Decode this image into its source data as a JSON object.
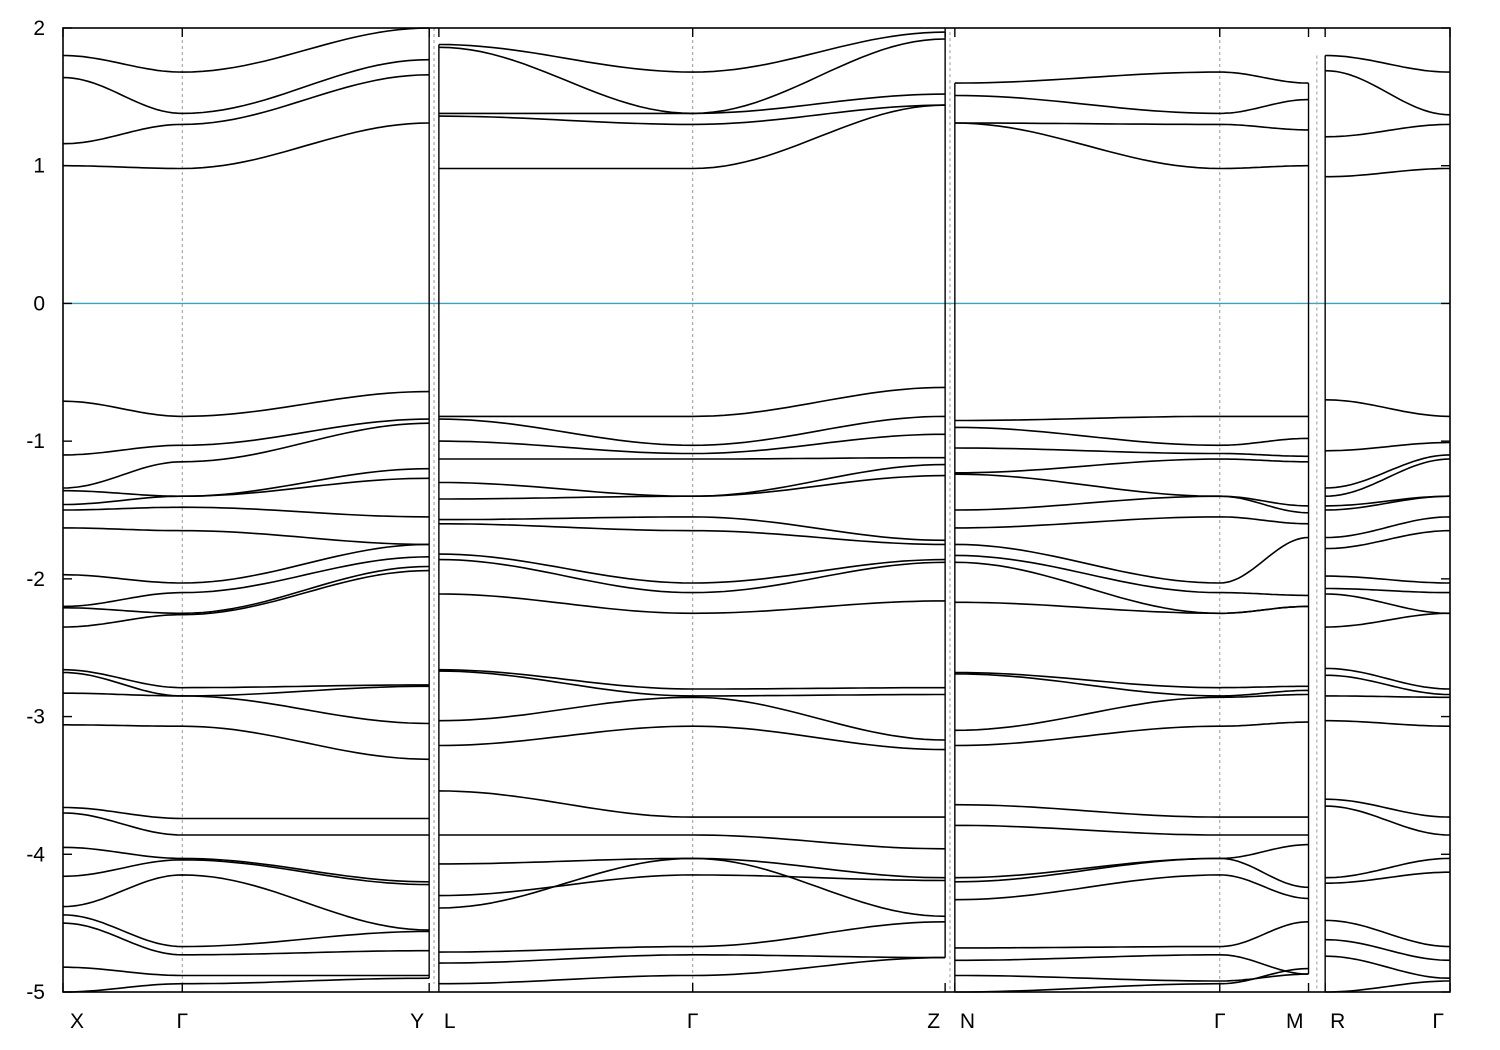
{
  "chart_data": {
    "type": "line",
    "title": "",
    "xlabel": "",
    "ylabel": "",
    "ylim": [
      -5,
      2
    ],
    "xlim": [
      0,
      1
    ],
    "yticks": [
      {
        "value": 2,
        "label": "2"
      },
      {
        "value": 1,
        "label": "1"
      },
      {
        "value": 0,
        "label": "0"
      },
      {
        "value": -1,
        "label": "-1"
      },
      {
        "value": -2,
        "label": "-2"
      },
      {
        "value": -3,
        "label": "-3"
      },
      {
        "value": -4,
        "label": "-4"
      },
      {
        "value": -5,
        "label": "-5"
      }
    ],
    "fermi_level": {
      "value": 0,
      "color": "#3ea0c0"
    },
    "band_color": "#000000",
    "high_symmetry_points": [
      {
        "pos": 0.0,
        "label": "X",
        "line": false,
        "break": false
      },
      {
        "pos": 0.086,
        "label": "Γ",
        "line": true,
        "break": false
      },
      {
        "pos": 0.264,
        "label": "Y",
        "line": false,
        "break": true
      },
      {
        "pos": 0.271,
        "label": "L",
        "line": false,
        "break": false
      },
      {
        "pos": 0.454,
        "label": "Γ",
        "line": true,
        "break": false
      },
      {
        "pos": 0.636,
        "label": "Z",
        "line": false,
        "break": true
      },
      {
        "pos": 0.643,
        "label": "N",
        "line": false,
        "break": false
      },
      {
        "pos": 0.834,
        "label": "Γ",
        "line": true,
        "break": false
      },
      {
        "pos": 0.898,
        "label": "M",
        "line": false,
        "break": true
      },
      {
        "pos": 0.91,
        "label": "R",
        "line": false,
        "break": false
      },
      {
        "pos": 1.0,
        "label": "Γ",
        "line": false,
        "break": false
      }
    ],
    "segments": [
      {
        "name": "X-Γ-Y",
        "x_points": [
          0.0,
          0.086,
          0.264
        ],
        "bands": [
          [
            1.8,
            1.68,
            2.0
          ],
          [
            1.64,
            1.38,
            1.77
          ],
          [
            1.16,
            1.3,
            1.66
          ],
          [
            1.0,
            0.98,
            1.31
          ],
          [
            -0.71,
            -0.82,
            -0.64
          ],
          [
            -1.1,
            -1.03,
            -0.84
          ],
          [
            -1.34,
            -1.15,
            -0.87
          ],
          [
            -1.36,
            -1.4,
            -1.2
          ],
          [
            -1.46,
            -1.4,
            -1.27
          ],
          [
            -1.5,
            -1.48,
            -1.55
          ],
          [
            -1.63,
            -1.65,
            -1.75
          ],
          [
            -1.97,
            -2.03,
            -1.75
          ],
          [
            -2.2,
            -2.1,
            -1.84
          ],
          [
            -2.21,
            -2.25,
            -1.91
          ],
          [
            -2.35,
            -2.26,
            -1.94
          ],
          [
            -2.66,
            -2.79,
            -2.77
          ],
          [
            -2.68,
            -2.85,
            -2.78
          ],
          [
            -2.83,
            -2.85,
            -3.05
          ],
          [
            -3.06,
            -3.07,
            -3.31
          ],
          [
            -3.66,
            -3.74,
            -3.74
          ],
          [
            -3.7,
            -3.86,
            -3.86
          ],
          [
            -3.95,
            -4.03,
            -4.2
          ],
          [
            -4.16,
            -4.04,
            -4.22
          ],
          [
            -4.38,
            -4.15,
            -4.55
          ],
          [
            -4.44,
            -4.67,
            -4.56
          ],
          [
            -4.5,
            -4.73,
            -4.7
          ],
          [
            -4.82,
            -4.88,
            -4.88
          ],
          [
            -5.0,
            -4.94,
            -4.9
          ]
        ]
      },
      {
        "name": "L-Γ-Z",
        "x_points": [
          0.271,
          0.454,
          0.636
        ],
        "bands": [
          [
            1.88,
            1.68,
            1.97
          ],
          [
            1.86,
            1.38,
            1.92
          ],
          [
            1.38,
            1.38,
            1.52
          ],
          [
            1.36,
            1.3,
            1.44
          ],
          [
            0.98,
            0.98,
            1.44
          ],
          [
            -0.82,
            -0.82,
            -0.61
          ],
          [
            -0.84,
            -1.03,
            -0.82
          ],
          [
            -1.0,
            -1.09,
            -0.95
          ],
          [
            -1.13,
            -1.13,
            -1.12
          ],
          [
            -1.3,
            -1.4,
            -1.17
          ],
          [
            -1.42,
            -1.4,
            -1.25
          ],
          [
            -1.57,
            -1.55,
            -1.72
          ],
          [
            -1.6,
            -1.65,
            -1.75
          ],
          [
            -1.82,
            -2.03,
            -1.86
          ],
          [
            -1.86,
            -2.1,
            -1.88
          ],
          [
            -2.11,
            -2.25,
            -2.16
          ],
          [
            -2.66,
            -2.8,
            -2.79
          ],
          [
            -2.67,
            -2.85,
            -2.84
          ],
          [
            -3.03,
            -2.86,
            -3.17
          ],
          [
            -3.21,
            -3.07,
            -3.24
          ],
          [
            -3.54,
            -3.73,
            -3.73
          ],
          [
            -3.86,
            -3.86,
            -3.96
          ],
          [
            -4.07,
            -4.03,
            -4.17
          ],
          [
            -4.3,
            -4.15,
            -4.19
          ],
          [
            -4.39,
            -4.03,
            -4.45
          ],
          [
            -4.71,
            -4.67,
            -4.49
          ],
          [
            -4.79,
            -4.73,
            -4.75
          ],
          [
            -4.94,
            -4.88,
            -4.75
          ]
        ]
      },
      {
        "name": "N-Γ-M",
        "x_points": [
          0.643,
          0.834,
          0.898
        ],
        "bands": [
          [
            1.6,
            1.68,
            1.6
          ],
          [
            1.51,
            1.38,
            1.48
          ],
          [
            1.31,
            1.3,
            1.26
          ],
          [
            1.31,
            0.98,
            1.0
          ],
          [
            -0.85,
            -0.82,
            -0.82
          ],
          [
            -0.9,
            -1.03,
            -0.98
          ],
          [
            -1.05,
            -1.09,
            -1.11
          ],
          [
            -1.23,
            -1.13,
            -1.15
          ],
          [
            -1.24,
            -1.4,
            -1.47
          ],
          [
            -1.5,
            -1.4,
            -1.52
          ],
          [
            -1.63,
            -1.55,
            -1.6
          ],
          [
            -1.75,
            -2.03,
            -1.7
          ],
          [
            -1.83,
            -2.1,
            -2.12
          ],
          [
            -1.88,
            -2.25,
            -2.2
          ],
          [
            -2.17,
            -2.25,
            -2.2
          ],
          [
            -2.68,
            -2.79,
            -2.78
          ],
          [
            -2.69,
            -2.85,
            -2.81
          ],
          [
            -3.1,
            -2.86,
            -2.84
          ],
          [
            -3.21,
            -3.07,
            -3.04
          ],
          [
            -3.64,
            -3.73,
            -3.73
          ],
          [
            -3.79,
            -3.86,
            -3.86
          ],
          [
            -4.17,
            -4.03,
            -3.93
          ],
          [
            -4.2,
            -4.03,
            -4.24
          ],
          [
            -4.33,
            -4.15,
            -4.32
          ],
          [
            -4.68,
            -4.67,
            -4.49
          ],
          [
            -4.77,
            -4.73,
            -4.87
          ],
          [
            -4.88,
            -4.92,
            -4.87
          ],
          [
            -5.0,
            -4.94,
            -4.83
          ]
        ]
      },
      {
        "name": "R-Γ",
        "x_points": [
          0.91,
          1.0
        ],
        "bands": [
          [
            1.8,
            1.68
          ],
          [
            1.69,
            1.37
          ],
          [
            1.21,
            1.3
          ],
          [
            0.92,
            0.98
          ],
          [
            -0.7,
            -0.82
          ],
          [
            -1.07,
            -1.01
          ],
          [
            -1.34,
            -1.1
          ],
          [
            -1.4,
            -1.13
          ],
          [
            -1.47,
            -1.4
          ],
          [
            -1.5,
            -1.4
          ],
          [
            -1.7,
            -1.55
          ],
          [
            -1.78,
            -1.65
          ],
          [
            -1.98,
            -2.03
          ],
          [
            -2.07,
            -2.1
          ],
          [
            -2.11,
            -2.25
          ],
          [
            -2.35,
            -2.25
          ],
          [
            -2.65,
            -2.8
          ],
          [
            -2.7,
            -2.84
          ],
          [
            -2.85,
            -2.86
          ],
          [
            -3.03,
            -3.07
          ],
          [
            -3.6,
            -3.73
          ],
          [
            -3.65,
            -3.86
          ],
          [
            -4.17,
            -4.03
          ],
          [
            -4.21,
            -4.13
          ],
          [
            -4.48,
            -4.67
          ],
          [
            -4.62,
            -4.77
          ],
          [
            -4.74,
            -4.9
          ],
          [
            -5.0,
            -4.92
          ]
        ]
      }
    ]
  }
}
